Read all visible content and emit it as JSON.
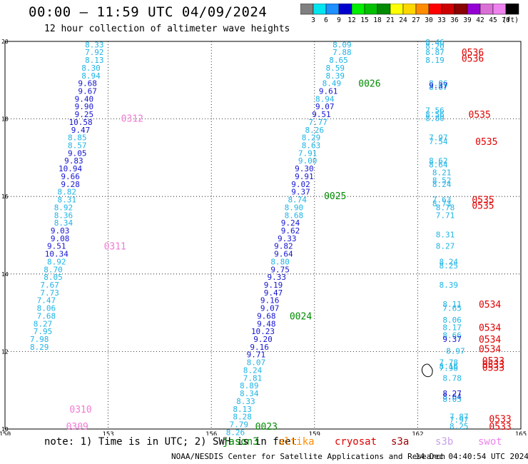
{
  "title": "00:00 – 11:59 UTC 04/09/2024",
  "subtitle": "12 hour collection of altimeter wave heights",
  "scale": {
    "unit": "(ft)",
    "bins": [
      {
        "label": "3",
        "color": "#808080"
      },
      {
        "label": "6",
        "color": "#00e5ee"
      },
      {
        "label": "9",
        "color": "#1e90ff"
      },
      {
        "label": "12",
        "color": "#0000cd"
      },
      {
        "label": "15",
        "color": "#00ee00"
      },
      {
        "label": "18",
        "color": "#00c000"
      },
      {
        "label": "21",
        "color": "#008b00"
      },
      {
        "label": "24",
        "color": "#ffff00"
      },
      {
        "label": "27",
        "color": "#ffd700"
      },
      {
        "label": "30",
        "color": "#ff8c00"
      },
      {
        "label": "33",
        "color": "#ff0000"
      },
      {
        "label": "36",
        "color": "#cd0000"
      },
      {
        "label": "39",
        "color": "#8b0000"
      },
      {
        "label": "42",
        "color": "#9400d3"
      },
      {
        "label": "45",
        "color": "#da70d6"
      },
      {
        "label": "70",
        "color": "#ee82ee"
      },
      {
        "label": "",
        "color": "#000000"
      }
    ]
  },
  "note": "note: 1) Time is in UTC; 2) SWH is in feet",
  "satellites": [
    {
      "name": "jason3",
      "color": "#008b00"
    },
    {
      "name": "altika",
      "color": "#ff8c00"
    },
    {
      "name": "cryosat",
      "color": "#e00000"
    },
    {
      "name": "s3a",
      "color": "#a00000"
    },
    {
      "name": "s3b",
      "color": "#c8a2e8"
    },
    {
      "name": "swot",
      "color": "#ee82ee"
    }
  ],
  "credit": "NOAA/NESDIS Center for Satellite Applications and Research",
  "created": "14 Dec 04:40:54 UTC 2024",
  "chart_data": {
    "type": "scatter",
    "title": "00:00 – 11:59 UTC 04/09/2024",
    "subtitle": "12 hour collection of altimeter wave heights",
    "xlim": [
      150,
      165
    ],
    "ylim": [
      10,
      20
    ],
    "xticks": [
      "150",
      "153",
      "156",
      "159",
      "162",
      "165"
    ],
    "yticks": [
      "10",
      "12",
      "14",
      "16",
      "18",
      "20"
    ],
    "grid": true,
    "colors": {
      "cyan": "#1eb4e6",
      "blue": "#1414d2",
      "pink": "#f07ad2",
      "green": "#008b00",
      "red": "#e00000"
    },
    "tracks": [
      {
        "color": "cyan",
        "points": [
          [
            152.6,
            19.92,
            "8.33"
          ],
          [
            152.6,
            19.72,
            "7.92"
          ],
          [
            152.6,
            19.52,
            "8.13"
          ],
          [
            152.5,
            19.32,
            "8.30"
          ],
          [
            152.5,
            19.12,
            "8.94"
          ]
        ]
      },
      {
        "color": "blue",
        "points": [
          [
            152.4,
            18.92,
            "9.68"
          ],
          [
            152.4,
            18.72,
            "9.67"
          ],
          [
            152.3,
            18.52,
            "9.40"
          ],
          [
            152.3,
            18.32,
            "9.90"
          ],
          [
            152.3,
            18.12,
            "9.25"
          ],
          [
            152.2,
            17.92,
            "10.58"
          ],
          [
            152.2,
            17.72,
            "9.47"
          ]
        ]
      },
      {
        "color": "cyan",
        "points": [
          [
            152.1,
            17.52,
            "8.85"
          ],
          [
            152.1,
            17.32,
            "8.57"
          ]
        ]
      },
      {
        "color": "blue",
        "points": [
          [
            152.1,
            17.12,
            "9.05"
          ],
          [
            152.0,
            16.92,
            "9.83"
          ],
          [
            151.9,
            16.72,
            "10.94"
          ],
          [
            151.9,
            16.52,
            "9.66"
          ],
          [
            151.9,
            16.32,
            "9.28"
          ]
        ]
      },
      {
        "color": "cyan",
        "points": [
          [
            151.8,
            16.12,
            "8.82"
          ],
          [
            151.8,
            15.92,
            "8.31"
          ],
          [
            151.7,
            15.72,
            "8.92"
          ],
          [
            151.7,
            15.52,
            "8.36"
          ],
          [
            151.7,
            15.32,
            "8.34"
          ]
        ]
      },
      {
        "color": "blue",
        "points": [
          [
            151.6,
            15.12,
            "9.03"
          ],
          [
            151.6,
            14.92,
            "9.08"
          ],
          [
            151.5,
            14.72,
            "9.51"
          ],
          [
            151.5,
            14.52,
            "10.34"
          ]
        ]
      },
      {
        "color": "cyan",
        "points": [
          [
            151.5,
            14.32,
            "8.92"
          ],
          [
            151.4,
            14.12,
            "8.70"
          ],
          [
            151.4,
            13.92,
            "8.05"
          ],
          [
            151.3,
            13.72,
            "7.67"
          ],
          [
            151.3,
            13.52,
            "7.73"
          ],
          [
            151.2,
            13.32,
            "7.47"
          ],
          [
            151.2,
            13.12,
            "8.06"
          ],
          [
            151.2,
            12.92,
            "7.68"
          ],
          [
            151.1,
            12.72,
            "8.27"
          ],
          [
            151.1,
            12.52,
            "7.95"
          ],
          [
            151.0,
            12.32,
            "7.98"
          ],
          [
            151.0,
            12.12,
            "8.29"
          ]
        ]
      },
      {
        "color": "cyan",
        "points": [
          [
            159.8,
            19.92,
            "8.09"
          ],
          [
            159.8,
            19.72,
            "7.88"
          ],
          [
            159.7,
            19.52,
            "8.65"
          ],
          [
            159.6,
            19.32,
            "8.59"
          ],
          [
            159.6,
            19.12,
            "8.39"
          ],
          [
            159.5,
            18.92,
            "8.49"
          ]
        ]
      },
      {
        "color": "blue",
        "points": [
          [
            159.4,
            18.72,
            "9.61"
          ]
        ]
      },
      {
        "color": "cyan",
        "points": [
          [
            159.3,
            18.52,
            "8.94"
          ]
        ]
      },
      {
        "color": "blue",
        "points": [
          [
            159.3,
            18.32,
            "9.07"
          ],
          [
            159.2,
            18.12,
            "9.51"
          ]
        ]
      },
      {
        "color": "cyan",
        "points": [
          [
            159.1,
            17.92,
            "7.77"
          ],
          [
            159.0,
            17.72,
            "8.26"
          ],
          [
            158.9,
            17.52,
            "8.29"
          ],
          [
            158.9,
            17.32,
            "8.63"
          ],
          [
            158.8,
            17.12,
            "7.91"
          ],
          [
            158.8,
            16.92,
            "9.00"
          ]
        ]
      },
      {
        "color": "blue",
        "points": [
          [
            158.7,
            16.72,
            "9.30"
          ],
          [
            158.7,
            16.52,
            "9.91"
          ],
          [
            158.6,
            16.32,
            "9.02"
          ],
          [
            158.6,
            16.12,
            "9.37"
          ]
        ]
      },
      {
        "color": "cyan",
        "points": [
          [
            158.5,
            15.92,
            "8.74"
          ],
          [
            158.4,
            15.72,
            "8.90"
          ],
          [
            158.4,
            15.52,
            "8.68"
          ]
        ]
      },
      {
        "color": "blue",
        "points": [
          [
            158.3,
            15.32,
            "9.24"
          ],
          [
            158.3,
            15.12,
            "9.62"
          ],
          [
            158.2,
            14.92,
            "9.33"
          ],
          [
            158.1,
            14.72,
            "9.82"
          ],
          [
            158.1,
            14.52,
            "9.64"
          ]
        ]
      },
      {
        "color": "cyan",
        "points": [
          [
            158.0,
            14.32,
            "8.80"
          ]
        ]
      },
      {
        "color": "blue",
        "points": [
          [
            158.0,
            14.12,
            "9.75"
          ],
          [
            157.9,
            13.92,
            "9.33"
          ],
          [
            157.8,
            13.72,
            "9.19"
          ],
          [
            157.8,
            13.52,
            "9.47"
          ],
          [
            157.7,
            13.32,
            "9.16"
          ],
          [
            157.7,
            13.12,
            "9.07"
          ],
          [
            157.6,
            12.92,
            "9.68"
          ],
          [
            157.6,
            12.72,
            "9.48"
          ],
          [
            157.5,
            12.52,
            "10.23"
          ],
          [
            157.5,
            12.32,
            "9.20"
          ],
          [
            157.4,
            12.12,
            "9.16"
          ],
          [
            157.3,
            11.92,
            "9.71"
          ]
        ]
      },
      {
        "color": "cyan",
        "points": [
          [
            157.3,
            11.72,
            "8.07"
          ],
          [
            157.2,
            11.52,
            "8.24"
          ],
          [
            157.2,
            11.32,
            "7.81"
          ],
          [
            157.1,
            11.12,
            "8.89"
          ],
          [
            157.1,
            10.92,
            "8.34"
          ],
          [
            157.0,
            10.72,
            "8.33"
          ],
          [
            156.9,
            10.52,
            "8.13"
          ],
          [
            156.9,
            10.32,
            "8.28"
          ],
          [
            156.8,
            10.12,
            "7.79"
          ],
          [
            156.7,
            9.92,
            "8.26"
          ]
        ]
      },
      {
        "color": "cyan",
        "points": [
          [
            162.5,
            19.98,
            "8.46"
          ],
          [
            162.5,
            19.88,
            "8.20"
          ],
          [
            162.5,
            19.72,
            "8.87"
          ],
          [
            162.5,
            19.52,
            "8.19"
          ],
          [
            162.6,
            18.92,
            "8.86"
          ],
          [
            162.6,
            18.82,
            "8.67"
          ]
        ]
      },
      {
        "color": "blue",
        "points": [
          [
            162.6,
            18.87,
            "9.37"
          ]
        ]
      },
      {
        "color": "cyan",
        "points": [
          [
            162.5,
            18.22,
            "7.56"
          ],
          [
            162.5,
            18.12,
            "8.56"
          ],
          [
            162.5,
            18.02,
            "8.80"
          ],
          [
            162.6,
            17.52,
            "7.97"
          ],
          [
            162.6,
            17.42,
            "7.54"
          ],
          [
            162.6,
            16.92,
            "8.62"
          ],
          [
            162.6,
            16.82,
            "8.64"
          ],
          [
            162.7,
            16.62,
            "8.21"
          ],
          [
            162.7,
            16.42,
            "8.52"
          ],
          [
            162.7,
            16.32,
            "8.24"
          ],
          [
            162.7,
            15.92,
            "7.63"
          ],
          [
            162.7,
            15.82,
            "8.73"
          ],
          [
            162.8,
            15.72,
            "8.78"
          ],
          [
            162.8,
            15.52,
            "7.71"
          ],
          [
            162.8,
            15.02,
            "8.31"
          ],
          [
            162.8,
            14.72,
            "8.27"
          ],
          [
            162.9,
            14.32,
            "8.24"
          ],
          [
            162.9,
            14.22,
            "8.25"
          ],
          [
            162.9,
            13.72,
            "8.39"
          ],
          [
            163.0,
            13.22,
            "8.11"
          ],
          [
            163.0,
            13.12,
            "7.65"
          ],
          [
            163.0,
            12.82,
            "8.06"
          ],
          [
            163.0,
            12.62,
            "8.17"
          ],
          [
            163.0,
            12.42,
            "8.66"
          ]
        ]
      },
      {
        "color": "blue",
        "points": [
          [
            163.0,
            12.32,
            "9.37"
          ]
        ]
      },
      {
        "color": "cyan",
        "points": [
          [
            163.1,
            12.02,
            "8.97"
          ],
          [
            162.9,
            11.72,
            "7.78"
          ],
          [
            162.9,
            11.62,
            "8.16"
          ],
          [
            162.9,
            11.57,
            "7.98"
          ],
          [
            163.0,
            11.32,
            "8.78"
          ]
        ]
      },
      {
        "color": "blue",
        "points": [
          [
            163.0,
            10.92,
            "8.27"
          ],
          [
            163.0,
            10.84,
            "8.64"
          ]
        ]
      },
      {
        "color": "cyan",
        "points": [
          [
            163.0,
            10.77,
            "8.05"
          ],
          [
            163.2,
            10.32,
            "7.87"
          ],
          [
            163.2,
            10.24,
            "7.97"
          ],
          [
            163.2,
            10.07,
            "8.25"
          ]
        ]
      }
    ],
    "pass_labels": [
      {
        "text": "0312",
        "x": 153.7,
        "y": 18.02,
        "color": "pink"
      },
      {
        "text": "0311",
        "x": 153.2,
        "y": 14.72,
        "color": "pink"
      },
      {
        "text": "0310",
        "x": 152.2,
        "y": 10.52,
        "color": "pink"
      },
      {
        "text": "0309",
        "x": 152.1,
        "y": 10.07,
        "color": "pink"
      },
      {
        "text": "0026",
        "x": 160.6,
        "y": 18.92,
        "color": "green"
      },
      {
        "text": "0025",
        "x": 159.6,
        "y": 16.02,
        "color": "green"
      },
      {
        "text": "0024",
        "x": 158.6,
        "y": 12.92,
        "color": "green"
      },
      {
        "text": "0023",
        "x": 157.6,
        "y": 10.07,
        "color": "green"
      },
      {
        "text": "0536",
        "x": 163.6,
        "y": 19.72,
        "color": "red"
      },
      {
        "text": "0536",
        "x": 163.6,
        "y": 19.57,
        "color": "red"
      },
      {
        "text": "0535",
        "x": 163.8,
        "y": 18.12,
        "color": "red"
      },
      {
        "text": "0535",
        "x": 164.0,
        "y": 17.42,
        "color": "red"
      },
      {
        "text": "0535",
        "x": 163.9,
        "y": 15.92,
        "color": "red"
      },
      {
        "text": "0535",
        "x": 163.9,
        "y": 15.77,
        "color": "red"
      },
      {
        "text": "0534",
        "x": 164.1,
        "y": 13.22,
        "color": "red"
      },
      {
        "text": "0534",
        "x": 164.1,
        "y": 12.62,
        "color": "red"
      },
      {
        "text": "0534",
        "x": 164.1,
        "y": 12.32,
        "color": "red"
      },
      {
        "text": "0534",
        "x": 164.1,
        "y": 12.07,
        "color": "red"
      },
      {
        "text": "0533",
        "x": 164.2,
        "y": 11.77,
        "color": "red"
      },
      {
        "text": "0533",
        "x": 164.2,
        "y": 11.67,
        "color": "red"
      },
      {
        "text": "0533",
        "x": 164.2,
        "y": 11.59,
        "color": "red"
      },
      {
        "text": "0533",
        "x": 164.4,
        "y": 10.27,
        "color": "red"
      },
      {
        "text": "0533",
        "x": 164.4,
        "y": 10.07,
        "color": "red"
      }
    ]
  }
}
